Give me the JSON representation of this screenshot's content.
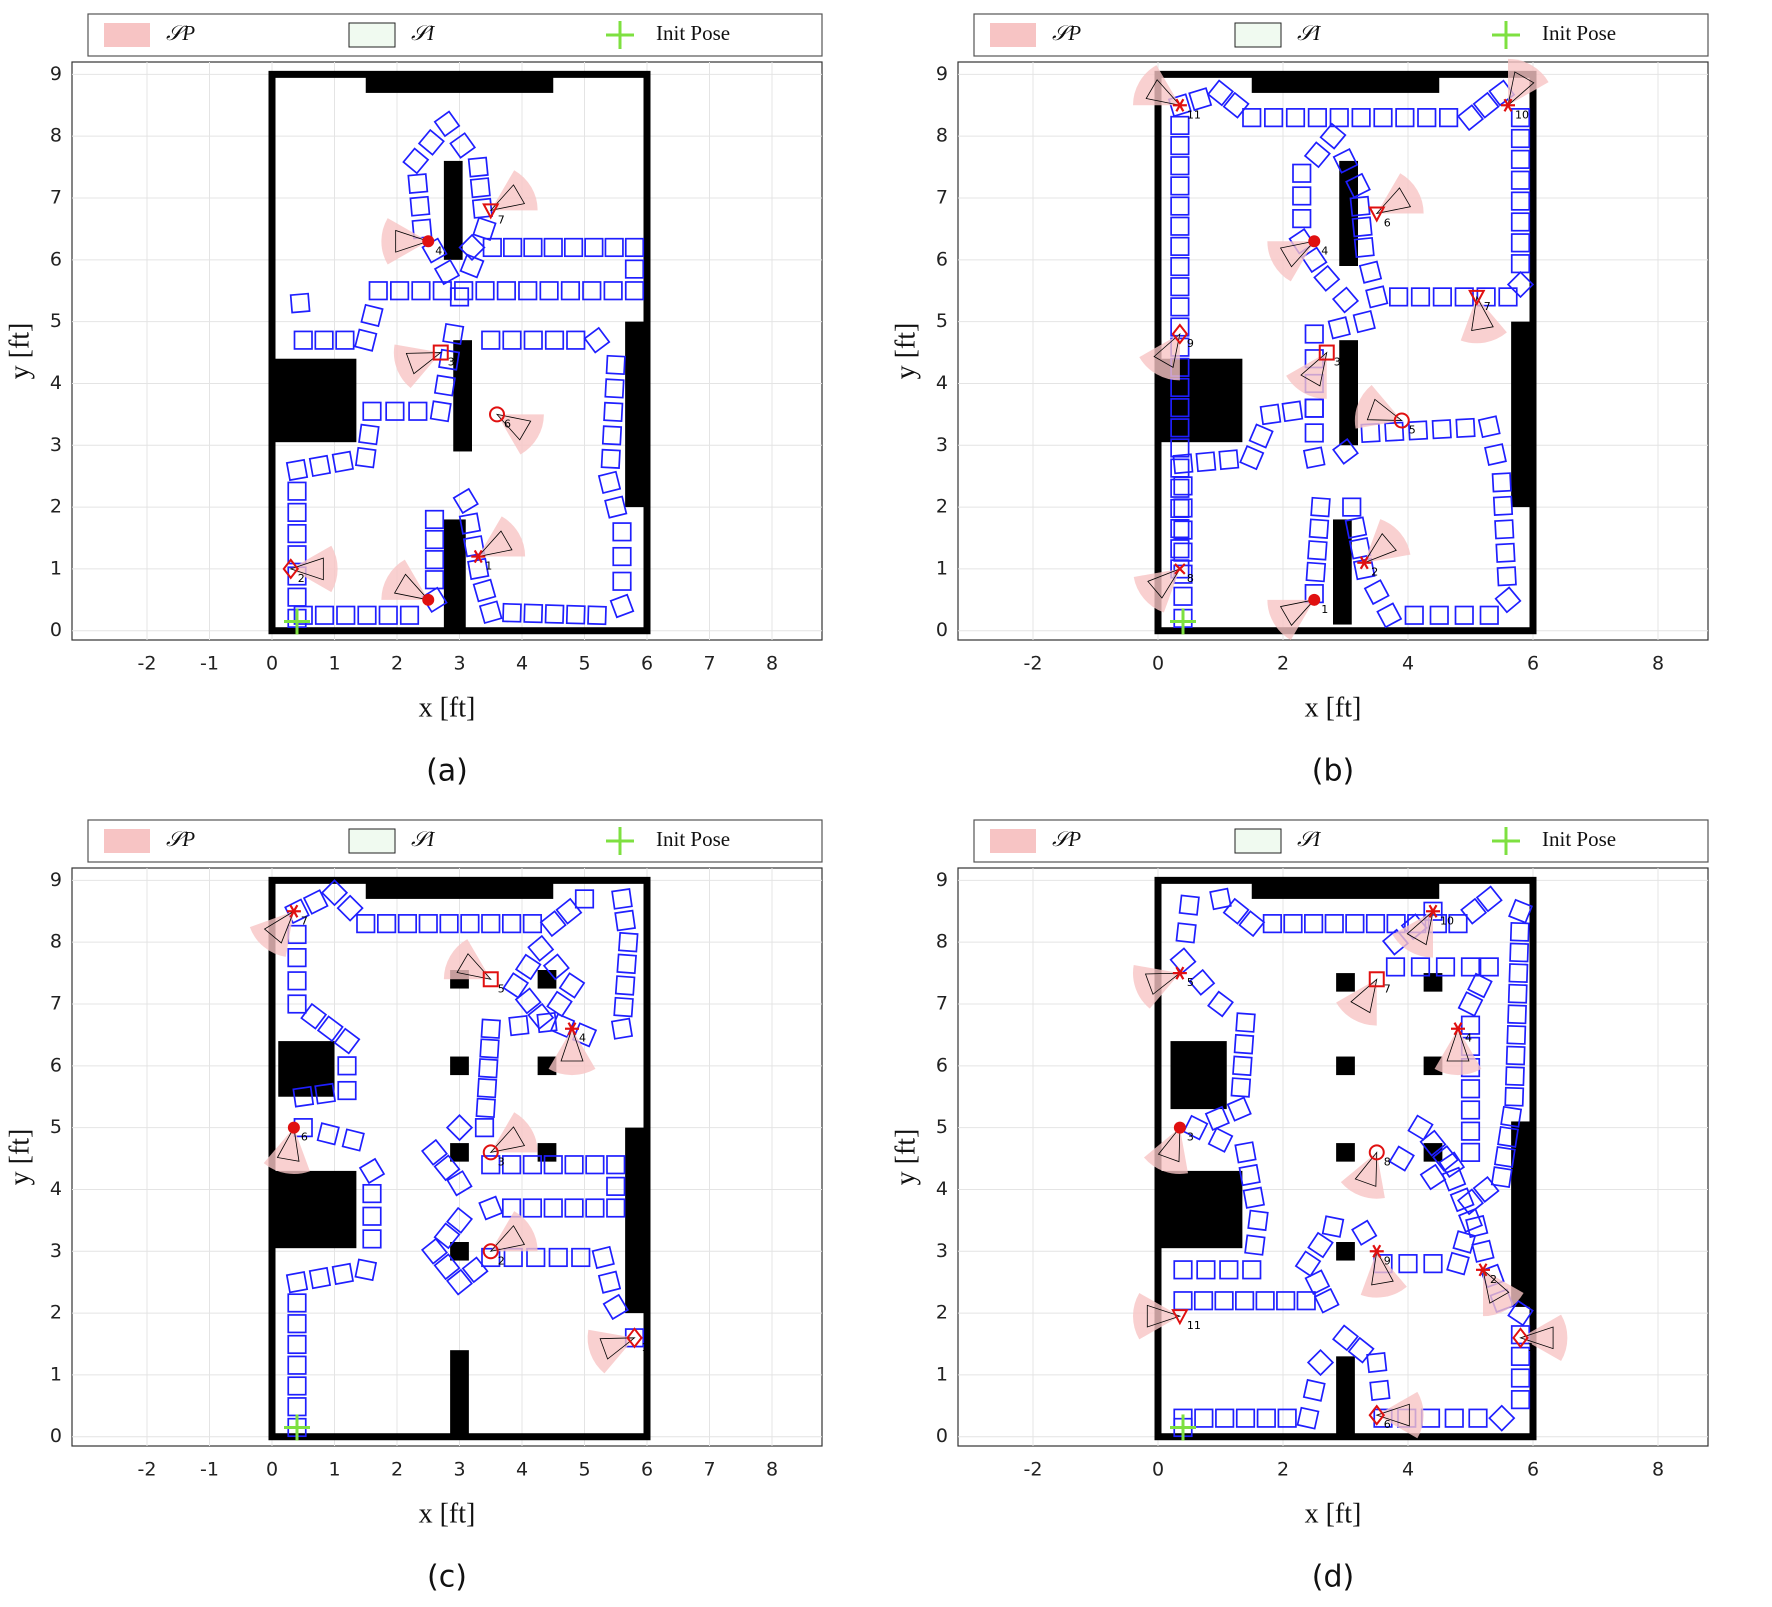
{
  "chart_data": [
    {
      "type": "scatter",
      "caption": "(a)",
      "xlabel": "x [ft]",
      "ylabel": "y [ft]",
      "legend": [
        {
          "name": "𝒮P",
          "color": "#f7c4c4"
        },
        {
          "name": "𝒮I",
          "color": "#f0faf0"
        },
        {
          "name": "Init Pose",
          "color": "#7ee040"
        }
      ],
      "xlim": [
        -3.2,
        8.8
      ],
      "ylim": [
        -0.15,
        9.2
      ],
      "xticks": [
        -2,
        -1,
        0,
        1,
        2,
        3,
        4,
        5,
        6,
        7,
        8
      ],
      "yticks": [
        0,
        1,
        2,
        3,
        4,
        5,
        6,
        7,
        8,
        9
      ],
      "grid": true,
      "boundary": {
        "x": [
          0,
          6
        ],
        "y": [
          0,
          9
        ]
      },
      "obstacles": [
        [
          1.5,
          8.7,
          4.5,
          9
        ],
        [
          0,
          3.05,
          1.35,
          4.4
        ],
        [
          5.65,
          2.0,
          6,
          5.0
        ],
        [
          2.75,
          6.0,
          3.05,
          7.6
        ],
        [
          2.9,
          2.9,
          3.2,
          4.7
        ],
        [
          2.75,
          0,
          3.1,
          1.8
        ]
      ],
      "trajectory": {
        "color": "#1f1fff",
        "x": [
          0.4,
          0.4,
          1.5,
          1.6,
          2.7,
          2.9,
          3.5,
          5.2,
          5.5,
          5.4,
          5.6,
          5.6,
          5.2,
          3.5,
          3.3,
          3.1,
          2.6,
          2.6,
          2.2,
          0.5,
          null,
          0.45,
          0.5,
          1.5,
          1.7,
          5.8,
          5.8,
          3.2,
          2.8,
          2.4,
          2.3,
          2.8,
          3.3,
          3.4,
          3.2,
          3.0
        ],
        "y": [
          0.2,
          2.6,
          2.8,
          3.55,
          3.55,
          4.8,
          4.7,
          4.7,
          4.3,
          2.4,
          1.6,
          0.4,
          0.25,
          0.3,
          1.0,
          2.1,
          1.8,
          0.5,
          0.25,
          0.25,
          null,
          5.3,
          4.7,
          4.7,
          5.5,
          5.5,
          6.2,
          6.2,
          5.8,
          6.5,
          7.6,
          8.2,
          7.5,
          6.5,
          5.9,
          5.4
        ]
      },
      "targets": {
        "color": "#e01010",
        "x": [
          0.3,
          2.5,
          3.3,
          2.7,
          3.6,
          2.5,
          3.5
        ],
        "y": [
          1.0,
          0.5,
          1.2,
          4.5,
          3.5,
          6.3,
          6.8
        ],
        "markers": [
          "diamond",
          "dot",
          "star",
          "square",
          "circle",
          "dot",
          "triangle"
        ],
        "labels": [
          "2",
          null,
          "1",
          "3",
          "6",
          "4",
          "7"
        ],
        "headings": [
          0,
          150,
          30,
          200,
          330,
          180,
          30
        ]
      },
      "init_pose": {
        "x": 0.4,
        "y": 0.15
      }
    },
    {
      "type": "scatter",
      "caption": "(b)",
      "xlabel": "x [ft]",
      "ylabel": "y [ft]",
      "legend": [
        {
          "name": "𝒮P",
          "color": "#f7c4c4"
        },
        {
          "name": "𝒮I",
          "color": "#f0faf0"
        },
        {
          "name": "Init Pose",
          "color": "#7ee040"
        }
      ],
      "xlim": [
        -3.2,
        8.8
      ],
      "ylim": [
        -0.15,
        9.2
      ],
      "xticks": [
        -2,
        0,
        2,
        4,
        6,
        8
      ],
      "yticks": [
        0,
        1,
        2,
        3,
        4,
        5,
        6,
        7,
        8,
        9
      ],
      "grid": true,
      "boundary": {
        "x": [
          0,
          6
        ],
        "y": [
          0,
          9
        ]
      },
      "obstacles": [
        [
          1.5,
          8.7,
          4.5,
          9
        ],
        [
          0,
          3.05,
          1.35,
          4.4
        ],
        [
          5.65,
          2.0,
          6,
          5.0
        ],
        [
          2.9,
          5.9,
          3.2,
          7.6
        ],
        [
          2.9,
          3.0,
          3.2,
          4.7
        ],
        [
          2.8,
          0.1,
          3.1,
          1.8
        ]
      ],
      "trajectory": {
        "color": "#1f1fff",
        "x": [
          0.4,
          0.4,
          1.5,
          1.8,
          2.5,
          2.5,
          3.0,
          3.4,
          5.3,
          5.5,
          5.6,
          5.3,
          3.7,
          3.3,
          3.1,
          2.6,
          2.5,
          null,
          0.35,
          0.35,
          1.0,
          1.5,
          5.0,
          5.5,
          5.8,
          5.8,
          5.6,
          3.5,
          3.3,
          3.2,
          2.8,
          2.3,
          2.3,
          2.7,
          3.3,
          2.5,
          2.5
        ],
        "y": [
          0.2,
          2.7,
          2.8,
          3.5,
          3.6,
          2.8,
          2.9,
          3.2,
          3.3,
          2.4,
          0.5,
          0.25,
          0.25,
          1.0,
          2.0,
          2.0,
          0.6,
          null,
          1.0,
          8.5,
          8.7,
          8.3,
          8.3,
          8.7,
          8.3,
          5.6,
          5.4,
          5.4,
          6.2,
          7.2,
          8.0,
          7.4,
          6.3,
          5.7,
          5.0,
          4.8,
          3.6
        ]
      },
      "targets": {
        "color": "#e01010",
        "x": [
          2.5,
          3.3,
          0.35,
          2.7,
          3.9,
          3.5,
          5.1,
          2.5,
          0.35,
          0.35,
          5.6
        ],
        "y": [
          0.5,
          1.1,
          1.0,
          4.5,
          3.4,
          6.75,
          5.4,
          6.3,
          4.8,
          8.5,
          8.5
        ],
        "markers": [
          "dot",
          "star",
          "cross",
          "square",
          "circle",
          "triangle",
          "triangle",
          "dot",
          "diamond",
          "star",
          "star"
        ],
        "labels": [
          "1",
          "2",
          "8",
          "3",
          "5",
          "6",
          "7",
          "4",
          "9",
          "11",
          "10"
        ],
        "headings": [
          210,
          40,
          220,
          240,
          160,
          30,
          280,
          210,
          240,
          150,
          60
        ]
      },
      "init_pose": {
        "x": 0.4,
        "y": 0.15
      }
    },
    {
      "type": "scatter",
      "caption": "(c)",
      "xlabel": "x [ft]",
      "ylabel": "y [ft]",
      "legend": [
        {
          "name": "𝒮P",
          "color": "#f7c4c4"
        },
        {
          "name": "𝒮I",
          "color": "#f0faf0"
        },
        {
          "name": "Init Pose",
          "color": "#7ee040"
        }
      ],
      "xlim": [
        -3.2,
        8.8
      ],
      "ylim": [
        -0.15,
        9.2
      ],
      "xticks": [
        -2,
        -1,
        0,
        1,
        2,
        3,
        4,
        5,
        6,
        7,
        8
      ],
      "yticks": [
        0,
        1,
        2,
        3,
        4,
        5,
        6,
        7,
        8,
        9
      ],
      "grid": true,
      "boundary": {
        "x": [
          0,
          6
        ],
        "y": [
          0,
          9
        ]
      },
      "obstacles": [
        [
          1.5,
          8.7,
          4.5,
          9
        ],
        [
          0.1,
          5.5,
          1.0,
          6.4
        ],
        [
          0,
          3.05,
          1.35,
          4.3
        ],
        [
          5.65,
          2.0,
          6,
          5.0
        ],
        [
          2.85,
          0,
          3.15,
          1.4
        ],
        [
          2.85,
          7.25,
          3.15,
          7.55
        ],
        [
          4.25,
          7.25,
          4.55,
          7.55
        ],
        [
          2.85,
          5.85,
          3.15,
          6.15
        ],
        [
          4.25,
          5.85,
          4.55,
          6.15
        ],
        [
          2.85,
          4.45,
          3.15,
          4.75
        ],
        [
          4.25,
          4.45,
          4.55,
          4.75
        ],
        [
          2.85,
          2.85,
          3.15,
          3.15
        ]
      ],
      "trajectory": {
        "color": "#1f1fff",
        "x": [
          0.4,
          0.4,
          1.5,
          1.6,
          1.6,
          1.3,
          0.5,
          0.5,
          1.2,
          1.2,
          0.4,
          0.4,
          1.0,
          1.5,
          4.5,
          5.0,
          5.6,
          5.7,
          5.6,
          5.0,
          4.3,
          3.9,
          4.3,
          4.8,
          4.4,
          3.5,
          3.4,
          3.0,
          2.6,
          3.0,
          3.5,
          5.5,
          5.5,
          3.5,
          3.0,
          2.6,
          3.0,
          3.5,
          5.3,
          5.5,
          5.8
        ],
        "y": [
          0.15,
          2.5,
          2.7,
          3.2,
          4.3,
          4.8,
          5.0,
          5.5,
          5.6,
          6.4,
          7.0,
          8.5,
          8.8,
          8.3,
          8.3,
          8.7,
          8.7,
          8.0,
          6.6,
          6.5,
          6.8,
          7.3,
          7.9,
          7.3,
          6.7,
          6.6,
          5.0,
          5.0,
          4.6,
          4.1,
          4.4,
          4.4,
          3.7,
          3.7,
          3.5,
          3.0,
          2.5,
          2.9,
          2.9,
          2.1,
          1.6
        ]
      },
      "targets": {
        "color": "#e01010",
        "x": [
          5.8,
          3.5,
          3.5,
          4.8,
          3.5,
          0.35,
          0.35
        ],
        "y": [
          1.6,
          3.0,
          4.6,
          6.6,
          7.4,
          5.0,
          8.5
        ],
        "markers": [
          "diamond",
          "circle",
          "circle",
          "star",
          "square",
          "dot",
          "star"
        ],
        "labels": [
          "1",
          "2",
          "3",
          "4",
          "5",
          "6",
          "7"
        ],
        "headings": [
          200,
          30,
          30,
          270,
          150,
          260,
          230
        ]
      },
      "init_pose": {
        "x": 0.4,
        "y": 0.15
      }
    },
    {
      "type": "scatter",
      "caption": "(d)",
      "xlabel": "x [ft]",
      "ylabel": "y [ft]",
      "legend": [
        {
          "name": "𝒮P",
          "color": "#f7c4c4"
        },
        {
          "name": "𝒮I",
          "color": "#f0faf0"
        },
        {
          "name": "Init Pose",
          "color": "#7ee040"
        }
      ],
      "xlim": [
        -3.2,
        8.8
      ],
      "ylim": [
        -0.15,
        9.2
      ],
      "xticks": [
        -2,
        0,
        2,
        4,
        6,
        8
      ],
      "yticks": [
        0,
        1,
        2,
        3,
        4,
        5,
        6,
        7,
        8,
        9
      ],
      "grid": true,
      "boundary": {
        "x": [
          0,
          6
        ],
        "y": [
          0,
          9
        ]
      },
      "obstacles": [
        [
          1.5,
          8.7,
          4.5,
          9
        ],
        [
          0.2,
          5.3,
          1.1,
          6.4
        ],
        [
          0,
          3.05,
          1.35,
          4.3
        ],
        [
          5.65,
          2.1,
          6,
          5.1
        ],
        [
          2.85,
          0,
          3.15,
          1.3
        ],
        [
          2.85,
          7.2,
          3.15,
          7.5
        ],
        [
          4.25,
          7.2,
          4.55,
          7.5
        ],
        [
          2.85,
          5.85,
          3.15,
          6.15
        ],
        [
          4.25,
          5.85,
          4.55,
          6.15
        ],
        [
          2.85,
          4.45,
          3.15,
          4.75
        ],
        [
          4.25,
          4.45,
          4.55,
          4.75
        ],
        [
          2.85,
          2.85,
          3.15,
          3.15
        ]
      ],
      "trajectory": {
        "color": "#1f1fff",
        "x": [
          0.4,
          0.4,
          2.4,
          2.6,
          3.0,
          3.5,
          3.6,
          5.5,
          5.8,
          5.8,
          5.5,
          5.2,
          5.0,
          5.5,
          5.7,
          5.8,
          5.3,
          4.8,
          1.5,
          1.0,
          0.5,
          0.4,
          1.0,
          1.4,
          1.3,
          0.6,
          1.4,
          1.6,
          1.5,
          0.4,
          0.4,
          2.7,
          2.4,
          2.8,
          3.3,
          3.6,
          4.8,
          5.0,
          4.6,
          4.2,
          3.9,
          4.4,
          5.0,
          5.0,
          5.3,
          5.0,
          3.8,
          3.8,
          4.4
        ],
        "y": [
          0.15,
          0.3,
          0.3,
          1.2,
          1.6,
          1.2,
          0.3,
          0.3,
          0.6,
          2.0,
          2.2,
          3.0,
          3.8,
          4.2,
          5.5,
          8.5,
          8.7,
          8.3,
          8.3,
          8.7,
          8.6,
          7.7,
          7.0,
          6.7,
          5.3,
          5.0,
          4.6,
          3.5,
          2.7,
          2.7,
          2.2,
          2.2,
          2.8,
          3.4,
          3.3,
          2.8,
          2.8,
          3.5,
          4.5,
          5.0,
          4.5,
          4.2,
          4.6,
          7.0,
          7.6,
          7.6,
          7.6,
          8.0,
          8.5
        ]
      },
      "targets": {
        "color": "#e01010",
        "x": [
          5.8,
          5.2,
          0.35,
          4.8,
          0.35,
          3.5,
          3.5,
          3.5,
          3.5,
          4.4,
          0.35
        ],
        "y": [
          1.6,
          2.7,
          5.0,
          6.6,
          7.5,
          0.35,
          7.4,
          4.6,
          3.0,
          8.5,
          1.95
        ],
        "markers": [
          "diamond",
          "star",
          "dot",
          "star",
          "star",
          "diamond",
          "square",
          "circle",
          "star",
          "star",
          "triangle"
        ],
        "labels": [
          "1",
          "2",
          "3",
          "4",
          "5",
          "6",
          "7",
          "8",
          "9",
          "10",
          "11"
        ],
        "headings": [
          0,
          300,
          250,
          270,
          200,
          0,
          240,
          250,
          280,
          240,
          180
        ]
      },
      "init_pose": {
        "x": 0.4,
        "y": 0.15
      }
    }
  ]
}
